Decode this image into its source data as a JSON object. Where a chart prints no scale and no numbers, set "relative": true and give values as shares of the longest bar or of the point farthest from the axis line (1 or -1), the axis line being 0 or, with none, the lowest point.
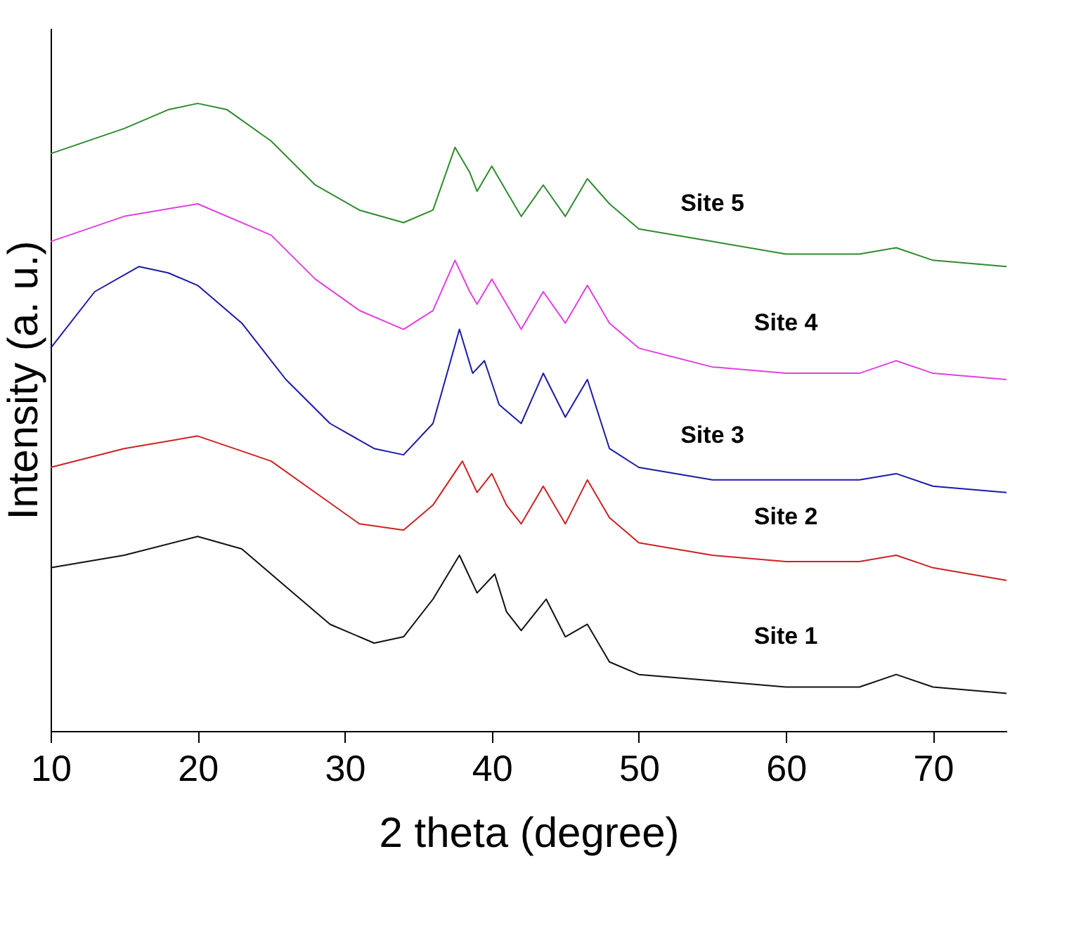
{
  "chart_data": {
    "type": "line",
    "relative": true,
    "xlabel": "2 theta (degree)",
    "ylabel": "Intensity (a. u.)",
    "xlim": [
      10,
      75
    ],
    "xticks": [
      10,
      20,
      30,
      40,
      50,
      60,
      70
    ],
    "grid": false,
    "legend": false,
    "marker": "none",
    "line_style": "solid",
    "series": [
      {
        "name": "Site 1",
        "color": "#111111",
        "x": [
          10,
          15,
          20,
          23,
          26,
          29,
          32,
          34,
          36,
          37.8,
          39,
          40.2,
          41,
          42,
          43.7,
          45,
          46.5,
          48,
          50,
          55,
          60,
          65,
          67.5,
          70,
          75
        ],
        "values": [
          0.26,
          0.28,
          0.31,
          0.29,
          0.23,
          0.17,
          0.14,
          0.15,
          0.21,
          0.28,
          0.22,
          0.25,
          0.19,
          0.16,
          0.21,
          0.15,
          0.17,
          0.11,
          0.09,
          0.08,
          0.07,
          0.07,
          0.09,
          0.07,
          0.06
        ]
      },
      {
        "name": "Site 2",
        "color": "#cc2222",
        "x": [
          10,
          15,
          20,
          25,
          28,
          31,
          34,
          36,
          38,
          39,
          40,
          41,
          42,
          43.5,
          45,
          46.5,
          48,
          50,
          55,
          60,
          65,
          67.5,
          70,
          75
        ],
        "values": [
          0.42,
          0.45,
          0.47,
          0.43,
          0.38,
          0.33,
          0.32,
          0.36,
          0.43,
          0.38,
          0.41,
          0.36,
          0.33,
          0.39,
          0.33,
          0.4,
          0.34,
          0.3,
          0.28,
          0.27,
          0.27,
          0.28,
          0.26,
          0.24
        ]
      },
      {
        "name": "Site 3",
        "color": "#1a1aa8",
        "x": [
          10,
          13,
          16,
          18,
          20,
          23,
          26,
          29,
          32,
          34,
          36,
          37.8,
          38.7,
          39.5,
          40.5,
          42,
          43.5,
          45,
          46.5,
          48,
          50,
          55,
          60,
          65,
          67.5,
          70,
          75
        ],
        "values": [
          0.61,
          0.7,
          0.74,
          0.73,
          0.71,
          0.65,
          0.56,
          0.49,
          0.45,
          0.44,
          0.49,
          0.64,
          0.57,
          0.59,
          0.52,
          0.49,
          0.57,
          0.5,
          0.56,
          0.45,
          0.42,
          0.4,
          0.4,
          0.4,
          0.41,
          0.39,
          0.38
        ]
      },
      {
        "name": "Site 4",
        "color": "#e040e0",
        "x": [
          10,
          15,
          20,
          25,
          28,
          31,
          34,
          36,
          37.5,
          38.5,
          39,
          40,
          41,
          42,
          43.5,
          45,
          46.5,
          48,
          50,
          55,
          60,
          65,
          67.5,
          70,
          75
        ],
        "values": [
          0.78,
          0.82,
          0.84,
          0.79,
          0.72,
          0.67,
          0.64,
          0.67,
          0.75,
          0.7,
          0.68,
          0.72,
          0.68,
          0.64,
          0.7,
          0.65,
          0.71,
          0.65,
          0.61,
          0.58,
          0.57,
          0.57,
          0.59,
          0.57,
          0.56
        ]
      },
      {
        "name": "Site 5",
        "color": "#2e8b2e",
        "x": [
          10,
          15,
          18,
          20,
          22,
          25,
          28,
          31,
          34,
          36,
          37.5,
          38.5,
          39,
          40,
          41,
          42,
          43.5,
          45,
          46.5,
          48,
          50,
          55,
          60,
          65,
          67.5,
          70,
          75
        ],
        "values": [
          0.92,
          0.96,
          0.99,
          1.0,
          0.99,
          0.94,
          0.87,
          0.83,
          0.81,
          0.83,
          0.93,
          0.89,
          0.86,
          0.9,
          0.86,
          0.82,
          0.87,
          0.82,
          0.88,
          0.84,
          0.8,
          0.78,
          0.76,
          0.76,
          0.77,
          0.75,
          0.74
        ]
      }
    ]
  }
}
